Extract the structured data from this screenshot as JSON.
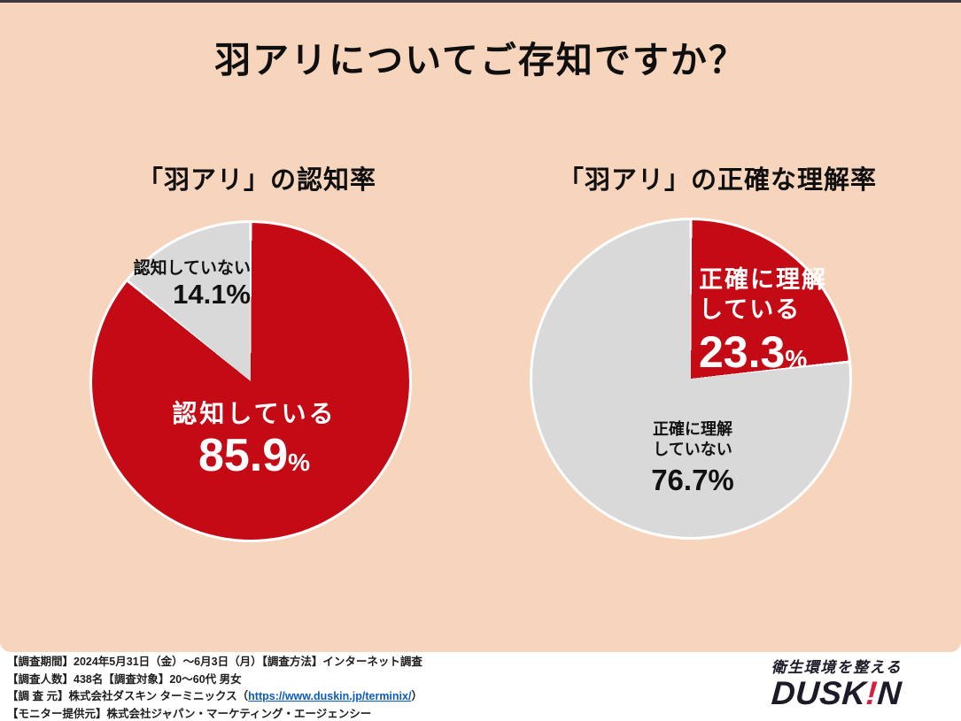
{
  "page": {
    "title": "羽アリについてご存知ですか？",
    "bg_color": "#f7d4bc",
    "accent_red": "#c40b15",
    "slice_gray": "#d9d9d9"
  },
  "chart_data": [
    {
      "type": "pie",
      "title": "「羽アリ」の認知率",
      "labels": [
        "認知している",
        "認知していない"
      ],
      "values": [
        85.9,
        14.1
      ],
      "colors": [
        "#c40b15",
        "#d9d9d9"
      ],
      "start_angle": "12-oclock",
      "direction": "clockwise",
      "legend_position": "inside"
    },
    {
      "type": "pie",
      "title": "「羽アリ」の正確な理解率",
      "labels": [
        "正確に理解している",
        "正確に理解していない"
      ],
      "values": [
        23.3,
        76.7
      ],
      "colors": [
        "#c40b15",
        "#d9d9d9"
      ],
      "start_angle": "12-oclock",
      "direction": "clockwise",
      "legend_position": "inside"
    }
  ],
  "left_chart": {
    "gray_label": "認知していない",
    "gray_value": "14.1%",
    "red_label": "認知している",
    "red_value": "85.9",
    "red_unit": "%"
  },
  "right_chart": {
    "red_label_line1": "正確に理解",
    "red_label_line2": "している",
    "red_value": "23.3",
    "red_unit": "%",
    "gray_label_line1": "正確に理解",
    "gray_label_line2": "していない",
    "gray_value": "76.7%"
  },
  "footer": {
    "line1": "【調査期間】2024年5月31日（金）～6月3日（月）【調査方法】インターネット調査",
    "line2": "【調査人数】438名【調査対象】20～60代  男女",
    "line3_prefix": "【調 査 元】株式会社ダスキン ターミニックス（",
    "line3_link": "https://www.duskin.jp/terminix/",
    "line3_suffix": "）",
    "line4": "【モニター提供元】株式会社ジャパン・マーケティング・エージェンシー"
  },
  "logo": {
    "tagline": "衛生環境を整える",
    "brand_left": "DUSK",
    "brand_bang": "!",
    "brand_right": "N"
  }
}
